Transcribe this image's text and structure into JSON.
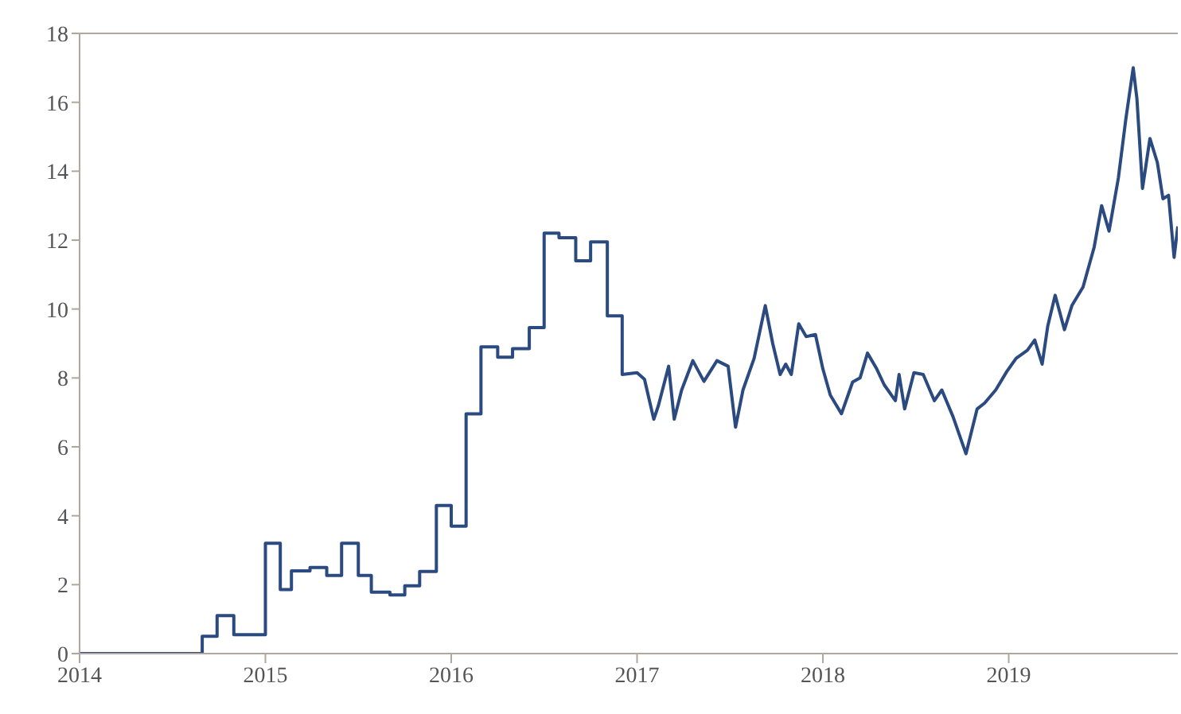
{
  "chart_data": {
    "type": "line",
    "xlim": [
      2014,
      2019.91
    ],
    "xticks": [
      2014,
      2015,
      2016,
      2017,
      2018,
      2019
    ],
    "ylim": [
      0,
      18
    ],
    "yticks": [
      0,
      2,
      4,
      6,
      8,
      10,
      12,
      14,
      16,
      18
    ],
    "grid": false,
    "legend": false,
    "marker": "none",
    "line_style": "solid",
    "series": [
      {
        "color": "#2b4a80",
        "x": [
          2014,
          2014.66,
          2014.66,
          2014.74,
          2014.74,
          2014.83,
          2014.83,
          2015.0,
          2015.0,
          2015.08,
          2015.08,
          2015.14,
          2015.14,
          2015.24,
          2015.24,
          2015.33,
          2015.33,
          2015.41,
          2015.41,
          2015.5,
          2015.5,
          2015.57,
          2015.57,
          2015.67,
          2015.67,
          2015.75,
          2015.75,
          2015.83,
          2015.83,
          2015.92,
          2015.92,
          2016.0,
          2016.0,
          2016.08,
          2016.08,
          2016.16,
          2016.16,
          2016.25,
          2016.25,
          2016.33,
          2016.33,
          2016.42,
          2016.42,
          2016.5,
          2016.5,
          2016.58,
          2016.58,
          2016.67,
          2016.67,
          2016.75,
          2016.75,
          2016.84,
          2016.84,
          2016.92,
          2016.92,
          2017.0,
          2017.04,
          2017.09,
          2017.115,
          2017.17,
          2017.2,
          2017.24,
          2017.3,
          2017.36,
          2017.43,
          2017.49,
          2017.53,
          2017.57,
          2017.63,
          2017.69,
          2017.73,
          2017.77,
          2017.8,
          2017.83,
          2017.87,
          2017.91,
          2017.96,
          2018.0,
          2018.04,
          2018.1,
          2018.16,
          2018.2,
          2018.24,
          2018.29,
          2018.33,
          2018.39,
          2018.41,
          2018.44,
          2018.49,
          2018.54,
          2018.6,
          2018.64,
          2018.7,
          2018.77,
          2018.83,
          2018.87,
          2018.93,
          2018.99,
          2019.04,
          2019.1,
          2019.14,
          2019.18,
          2019.21,
          2019.25,
          2019.3,
          2019.34,
          2019.4,
          2019.46,
          2019.5,
          2019.54,
          2019.59,
          2019.63,
          2019.67,
          2019.69,
          2019.72,
          2019.76,
          2019.8,
          2019.83,
          2019.86,
          2019.89,
          2019.91
        ],
        "values": [
          0,
          0,
          0.5,
          0.5,
          1.1,
          1.1,
          0.55,
          0.55,
          3.2,
          3.2,
          1.86,
          1.86,
          2.4,
          2.4,
          2.5,
          2.5,
          2.27,
          2.27,
          3.2,
          3.2,
          2.27,
          2.27,
          1.78,
          1.78,
          1.7,
          1.7,
          1.97,
          1.97,
          2.38,
          2.38,
          4.3,
          4.3,
          3.7,
          3.7,
          6.96,
          6.96,
          8.9,
          8.9,
          8.6,
          8.6,
          8.85,
          8.85,
          9.46,
          9.46,
          12.2,
          12.2,
          12.07,
          12.07,
          11.4,
          11.4,
          11.95,
          11.95,
          9.8,
          9.8,
          8.1,
          8.15,
          7.96,
          6.8,
          7.2,
          8.34,
          6.8,
          7.65,
          8.5,
          7.9,
          8.5,
          8.34,
          6.57,
          7.65,
          8.57,
          10.1,
          9.0,
          8.1,
          8.4,
          8.1,
          9.57,
          9.2,
          9.26,
          8.26,
          7.5,
          6.96,
          7.88,
          8.0,
          8.72,
          8.26,
          7.8,
          7.34,
          8.1,
          7.1,
          8.15,
          8.1,
          7.34,
          7.65,
          6.88,
          5.8,
          7.1,
          7.27,
          7.65,
          8.19,
          8.57,
          8.8,
          9.1,
          8.4,
          9.5,
          10.4,
          9.4,
          10.1,
          10.64,
          11.8,
          13.0,
          12.26,
          13.8,
          15.5,
          17.0,
          16.1,
          13.5,
          14.95,
          14.25,
          13.2,
          13.3,
          11.5,
          12.4
        ]
      }
    ]
  }
}
